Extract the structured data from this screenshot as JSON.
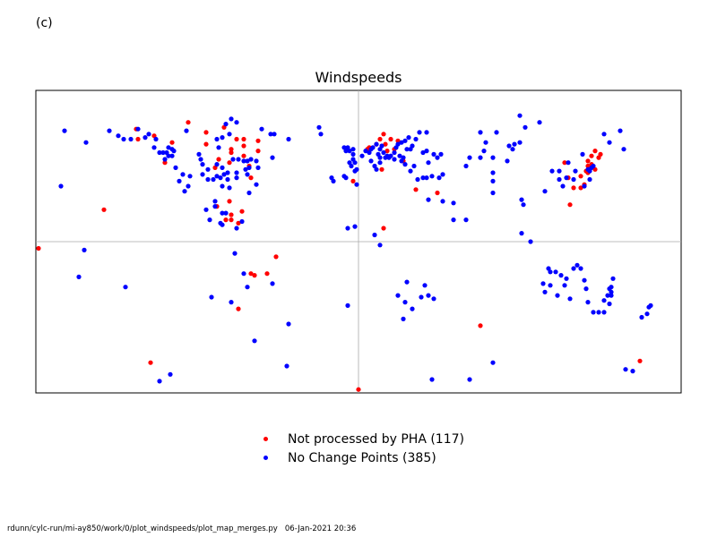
{
  "panel_label": "(c)",
  "footer": {
    "path": "rdunn/cylc-run/mi-ay850/work/0/plot_windspeeds/plot_map_merges.py",
    "timestamp": "06-Jan-2021 20:36"
  },
  "chart_data": {
    "type": "scatter",
    "title": "Windspeeds",
    "xlim": [
      -180,
      180
    ],
    "ylim": [
      -90,
      90
    ],
    "grid_lines": {
      "x": [
        0
      ],
      "y": [
        0
      ]
    },
    "legend_position": "below",
    "series": [
      {
        "name": "Not processed by PHA (117)",
        "color": "#ff0000",
        "points": [
          [
            -124,
            67
          ],
          [
            -123,
            61
          ],
          [
            -114,
            63
          ],
          [
            -104,
            59
          ],
          [
            -108,
            47
          ],
          [
            -95,
            71
          ],
          [
            -85,
            58
          ],
          [
            -80,
            44
          ],
          [
            -85,
            65
          ],
          [
            -75,
            68
          ],
          [
            -71,
            55
          ],
          [
            -78,
            49
          ],
          [
            -68,
            61
          ],
          [
            -71,
            53
          ],
          [
            -72,
            47
          ],
          [
            -64,
            61
          ],
          [
            -64,
            57
          ],
          [
            -64,
            51
          ],
          [
            -56,
            60
          ],
          [
            -56,
            54
          ],
          [
            -61,
            45
          ],
          [
            -60,
            38
          ],
          [
            -79,
            21
          ],
          [
            -72,
            24
          ],
          [
            -71,
            16
          ],
          [
            -65,
            18
          ],
          [
            -74,
            13
          ],
          [
            -71,
            13
          ],
          [
            -67,
            11
          ],
          [
            -142,
            19
          ],
          [
            -183,
            -4
          ],
          [
            -46,
            -9
          ],
          [
            -51,
            -19
          ],
          [
            -60,
            -19
          ],
          [
            -58,
            -20
          ],
          [
            -67,
            -40
          ],
          [
            -116,
            -72
          ],
          [
            5,
            55
          ],
          [
            6,
            56
          ],
          [
            10,
            58
          ],
          [
            12,
            61
          ],
          [
            14,
            64
          ],
          [
            15,
            58
          ],
          [
            18,
            61
          ],
          [
            16,
            54
          ],
          [
            20,
            55
          ],
          [
            22,
            60
          ],
          [
            25,
            48
          ],
          [
            13,
            43
          ],
          [
            -3,
            36
          ],
          [
            14,
            8
          ],
          [
            32,
            31
          ],
          [
            44,
            29
          ],
          [
            68,
            -50
          ],
          [
            115,
            47
          ],
          [
            117,
            38
          ],
          [
            118,
            22
          ],
          [
            120,
            32
          ],
          [
            124,
            39
          ],
          [
            127,
            42
          ],
          [
            124,
            32
          ],
          [
            126,
            34
          ],
          [
            128,
            41
          ],
          [
            130,
            46
          ],
          [
            132,
            43
          ],
          [
            134,
            50
          ],
          [
            128,
            45
          ],
          [
            130,
            51
          ],
          [
            132,
            54
          ],
          [
            135,
            52
          ],
          [
            128,
            48
          ],
          [
            157,
            -71
          ],
          [
            0,
            -88
          ]
        ]
      },
      {
        "name": "No Change Points (385)",
        "color": "#0000ff",
        "points": [
          [
            -164,
            66
          ],
          [
            -152,
            59
          ],
          [
            -139,
            66
          ],
          [
            -134,
            63
          ],
          [
            -131,
            61
          ],
          [
            -127,
            61
          ],
          [
            -123,
            67
          ],
          [
            -117,
            64
          ],
          [
            -113,
            61
          ],
          [
            -114,
            56
          ],
          [
            -111,
            53
          ],
          [
            -109,
            53
          ],
          [
            -108,
            49
          ],
          [
            -106,
            51
          ],
          [
            -106,
            56
          ],
          [
            -104,
            55
          ],
          [
            -103,
            54
          ],
          [
            -104,
            51
          ],
          [
            -102,
            44
          ],
          [
            -98,
            40
          ],
          [
            -100,
            36
          ],
          [
            -94,
            39
          ],
          [
            -95,
            33
          ],
          [
            -97,
            30
          ],
          [
            -89,
            52
          ],
          [
            -88,
            49
          ],
          [
            -87,
            46
          ],
          [
            -87,
            40
          ],
          [
            -84,
            43
          ],
          [
            -84,
            37
          ],
          [
            -81,
            37
          ],
          [
            -79,
            46
          ],
          [
            -79,
            39
          ],
          [
            -76,
            44
          ],
          [
            -75,
            40
          ],
          [
            -76,
            33
          ],
          [
            -73,
            41
          ],
          [
            -73,
            37
          ],
          [
            -72,
            32
          ],
          [
            -78,
            56
          ],
          [
            -79,
            61
          ],
          [
            -76,
            62
          ],
          [
            -72,
            64
          ],
          [
            -74,
            70
          ],
          [
            -71,
            73
          ],
          [
            -68,
            71
          ],
          [
            -67,
            49
          ],
          [
            -68,
            41
          ],
          [
            -68,
            38
          ],
          [
            -64,
            48
          ],
          [
            -63,
            43
          ],
          [
            -62,
            48
          ],
          [
            -62,
            40
          ],
          [
            -61,
            44
          ],
          [
            -57,
            48
          ],
          [
            -56,
            44
          ],
          [
            -57,
            34
          ],
          [
            -61,
            29
          ],
          [
            -65,
            12
          ],
          [
            -68,
            8
          ],
          [
            -74,
            17
          ],
          [
            -77,
            11
          ],
          [
            -69,
            -7
          ],
          [
            -64,
            -19
          ],
          [
            -62,
            -27
          ],
          [
            -71,
            -36
          ],
          [
            -40,
            -74
          ],
          [
            -39,
            -49
          ],
          [
            -48,
            -25
          ],
          [
            -58,
            -59
          ],
          [
            -82,
            -33
          ],
          [
            -130,
            -27
          ],
          [
            -166,
            33
          ],
          [
            -153,
            -5
          ],
          [
            -105,
            -79
          ],
          [
            -111,
            -83
          ],
          [
            -54,
            67
          ],
          [
            -49,
            64
          ],
          [
            -48,
            50
          ],
          [
            -77,
            38
          ],
          [
            -80,
            24
          ],
          [
            -80,
            21
          ],
          [
            -60,
            49
          ],
          [
            -70,
            49
          ],
          [
            -85,
            19
          ],
          [
            -83,
            13
          ],
          [
            -76,
            17
          ],
          [
            -76,
            10
          ],
          [
            -107,
            53
          ],
          [
            -96,
            66
          ],
          [
            -119,
            62
          ],
          [
            -47,
            64
          ],
          [
            -39,
            61
          ],
          [
            -22,
            68
          ],
          [
            -21,
            64
          ],
          [
            -8,
            56
          ],
          [
            -5,
            54
          ],
          [
            -5,
            47
          ],
          [
            -3,
            55
          ],
          [
            -6,
            56
          ],
          [
            -7,
            54
          ],
          [
            -3,
            52
          ],
          [
            -3,
            49
          ],
          [
            -2,
            47
          ],
          [
            -4,
            45
          ],
          [
            -2,
            42
          ],
          [
            -1,
            43
          ],
          [
            2,
            51
          ],
          [
            4,
            54
          ],
          [
            7,
            55
          ],
          [
            8,
            56
          ],
          [
            10,
            58
          ],
          [
            12,
            55
          ],
          [
            13,
            57
          ],
          [
            6,
            53
          ],
          [
            11,
            52
          ],
          [
            14,
            53
          ],
          [
            12,
            50
          ],
          [
            16,
            51
          ],
          [
            17,
            50
          ],
          [
            15,
            50
          ],
          [
            7,
            48
          ],
          [
            9,
            45
          ],
          [
            10,
            43
          ],
          [
            12,
            47
          ],
          [
            18,
            51
          ],
          [
            20,
            53
          ],
          [
            21,
            56
          ],
          [
            22,
            58
          ],
          [
            24,
            59
          ],
          [
            26,
            60
          ],
          [
            28,
            62
          ],
          [
            27,
            55
          ],
          [
            30,
            57
          ],
          [
            32,
            61
          ],
          [
            34,
            65
          ],
          [
            38,
            65
          ],
          [
            36,
            53
          ],
          [
            38,
            54
          ],
          [
            42,
            52
          ],
          [
            44,
            50
          ],
          [
            46,
            52
          ],
          [
            39,
            47
          ],
          [
            41,
            39
          ],
          [
            45,
            38
          ],
          [
            47,
            40
          ],
          [
            26,
            46
          ],
          [
            29,
            42
          ],
          [
            31,
            45
          ],
          [
            23,
            51
          ],
          [
            25,
            50
          ],
          [
            29,
            55
          ],
          [
            24,
            48
          ],
          [
            20,
            49
          ],
          [
            33,
            37
          ],
          [
            36,
            38
          ],
          [
            38,
            38
          ],
          [
            -7,
            38
          ],
          [
            -8,
            39
          ],
          [
            -1,
            34
          ],
          [
            -15,
            38
          ],
          [
            -14,
            36
          ],
          [
            -6,
            8
          ],
          [
            -2,
            9
          ],
          [
            9,
            4
          ],
          [
            12,
            -2
          ],
          [
            27,
            -24
          ],
          [
            30,
            -40
          ],
          [
            25,
            -46
          ],
          [
            22,
            -32
          ],
          [
            39,
            -32
          ],
          [
            37,
            -26
          ],
          [
            42,
            -34
          ],
          [
            35,
            -33
          ],
          [
            26,
            -36
          ],
          [
            -6,
            -38
          ],
          [
            41,
            -82
          ],
          [
            75,
            -72
          ],
          [
            62,
            -82
          ],
          [
            75,
            50
          ],
          [
            75,
            41
          ],
          [
            75,
            36
          ],
          [
            75,
            29
          ],
          [
            62,
            50
          ],
          [
            68,
            50
          ],
          [
            90,
            59
          ],
          [
            84,
            57
          ],
          [
            83,
            48
          ],
          [
            53,
            23
          ],
          [
            47,
            24
          ],
          [
            39,
            25
          ],
          [
            53,
            13
          ],
          [
            60,
            13
          ],
          [
            60,
            45
          ],
          [
            68,
            65
          ],
          [
            77,
            65
          ],
          [
            71,
            59
          ],
          [
            70,
            54
          ],
          [
            86,
            55
          ],
          [
            87,
            58
          ],
          [
            90,
            75
          ],
          [
            101,
            71
          ],
          [
            93,
            68
          ],
          [
            104,
            30
          ],
          [
            91,
            25
          ],
          [
            92,
            22
          ],
          [
            91,
            5
          ],
          [
            96,
            0
          ],
          [
            103,
            -25
          ],
          [
            104,
            -30
          ],
          [
            111,
            -32
          ],
          [
            118,
            -34
          ],
          [
            115,
            -26
          ],
          [
            107,
            -26
          ],
          [
            116,
            -22
          ],
          [
            113,
            -20
          ],
          [
            110,
            -18
          ],
          [
            106,
            -16
          ],
          [
            120,
            -16
          ],
          [
            122,
            -14
          ],
          [
            124,
            -16
          ],
          [
            126,
            -23
          ],
          [
            127,
            -28
          ],
          [
            128,
            -36
          ],
          [
            131,
            -42
          ],
          [
            134,
            -42
          ],
          [
            137,
            -42
          ],
          [
            137,
            -35
          ],
          [
            139,
            -32
          ],
          [
            140,
            -28
          ],
          [
            141,
            -27
          ],
          [
            141,
            -30
          ],
          [
            142,
            -22
          ],
          [
            141,
            -32
          ],
          [
            140,
            -37
          ],
          [
            158,
            -45
          ],
          [
            161,
            -43
          ],
          [
            162,
            -39
          ],
          [
            163,
            -38
          ],
          [
            149,
            -76
          ],
          [
            153,
            -77
          ],
          [
            126,
            33
          ],
          [
            129,
            37
          ],
          [
            128,
            43
          ],
          [
            130,
            44
          ],
          [
            131,
            45
          ],
          [
            129,
            42
          ],
          [
            121,
            42
          ],
          [
            120,
            37
          ],
          [
            112,
            42
          ],
          [
            108,
            42
          ],
          [
            112,
            37
          ],
          [
            116,
            38
          ],
          [
            114,
            33
          ],
          [
            140,
            59
          ],
          [
            146,
            66
          ],
          [
            148,
            55
          ],
          [
            137,
            64
          ],
          [
            125,
            52
          ],
          [
            117,
            47
          ],
          [
            107,
            -18
          ],
          [
            -156,
            -21
          ]
        ]
      }
    ]
  }
}
